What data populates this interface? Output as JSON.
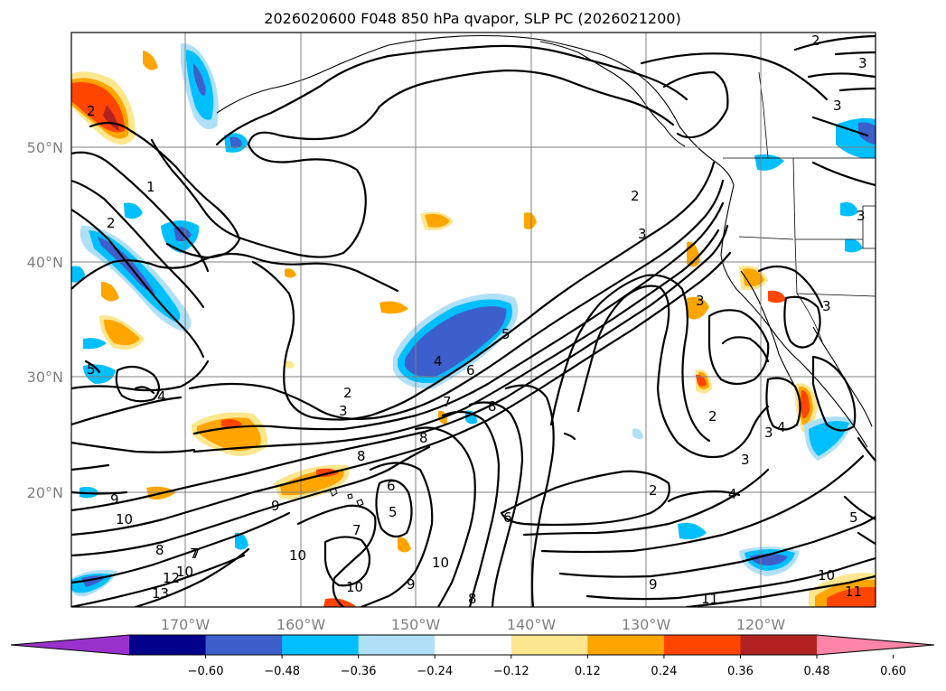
{
  "title": "2026020600 F048 850 hPa qvapor, SLP PC (2026021200)",
  "lat_labels": [
    "50°N",
    "40°N",
    "30°N",
    "20°N"
  ],
  "lon_labels": [
    "170°W",
    "160°W",
    "150°W",
    "140°W",
    "130°W",
    "120°W"
  ],
  "colorbar": {
    "colors": [
      "#9932cc",
      "#00008b",
      "#3d5fcb",
      "#00bfff",
      "#b0e0f8",
      "#ffffff",
      "#fce68e",
      "#ffa500",
      "#ff4500",
      "#b22222",
      "#ff85a8"
    ],
    "ticks": [
      "−0.60",
      "−0.48",
      "−0.36",
      "−0.24",
      "−0.12",
      "0.12",
      "0.24",
      "0.36",
      "0.48",
      "0.60"
    ]
  },
  "contour_labels": [
    "2",
    "3",
    "3",
    "2",
    "1",
    "2",
    "2",
    "3",
    "3",
    "2",
    "3",
    "4",
    "5",
    "6",
    "7",
    "8",
    "8",
    "8",
    "9",
    "6",
    "5",
    "7",
    "10",
    "10",
    "9",
    "10",
    "8",
    "9",
    "10",
    "8",
    "7",
    "12",
    "13",
    "10",
    "9",
    "11",
    "10",
    "2",
    "3",
    "4",
    "2",
    "3",
    "4",
    "3",
    "5",
    "4",
    "5",
    "7",
    "11",
    "6",
    "3"
  ],
  "colors": {
    "negative_strong": "#3d5fcb",
    "negative_mid": "#00bfff",
    "negative_weak": "#b0e0f8",
    "positive_weak": "#fce68e",
    "positive_mid": "#ffa500",
    "positive_strong": "#ff4500",
    "positive_vstrong": "#b22222"
  }
}
